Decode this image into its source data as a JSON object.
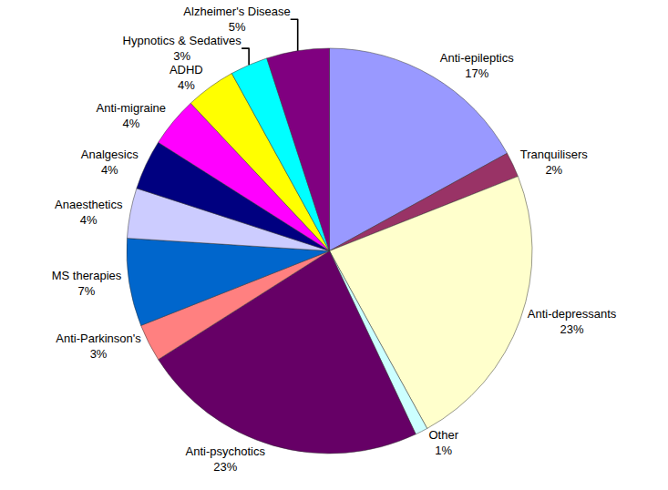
{
  "chart_data": {
    "type": "pie",
    "categories": [
      "Anti-epileptics",
      "Tranquilisers",
      "Anti-depressants",
      "Other",
      "Anti-psychotics",
      "Anti-Parkinson's",
      "MS therapies",
      "Anaesthetics",
      "Analgesics",
      "Anti-migraine",
      "ADHD",
      "Hypnotics & Sedatives",
      "Alzheimer's Disease"
    ],
    "values": [
      17,
      2,
      23,
      1,
      23,
      3,
      7,
      4,
      4,
      4,
      4,
      3,
      5
    ],
    "value_labels": [
      "17%",
      "2%",
      "23%",
      "1%",
      "23%",
      "3%",
      "7%",
      "4%",
      "4%",
      "4%",
      "4%",
      "3%",
      "5%"
    ],
    "colors": [
      "#9999ff",
      "#993366",
      "#ffffcc",
      "#ccffff",
      "#660066",
      "#ff8080",
      "#0066cc",
      "#ccccff",
      "#000080",
      "#ff00ff",
      "#ffff00",
      "#00ffff",
      "#800080"
    ],
    "data_labels": true
  }
}
